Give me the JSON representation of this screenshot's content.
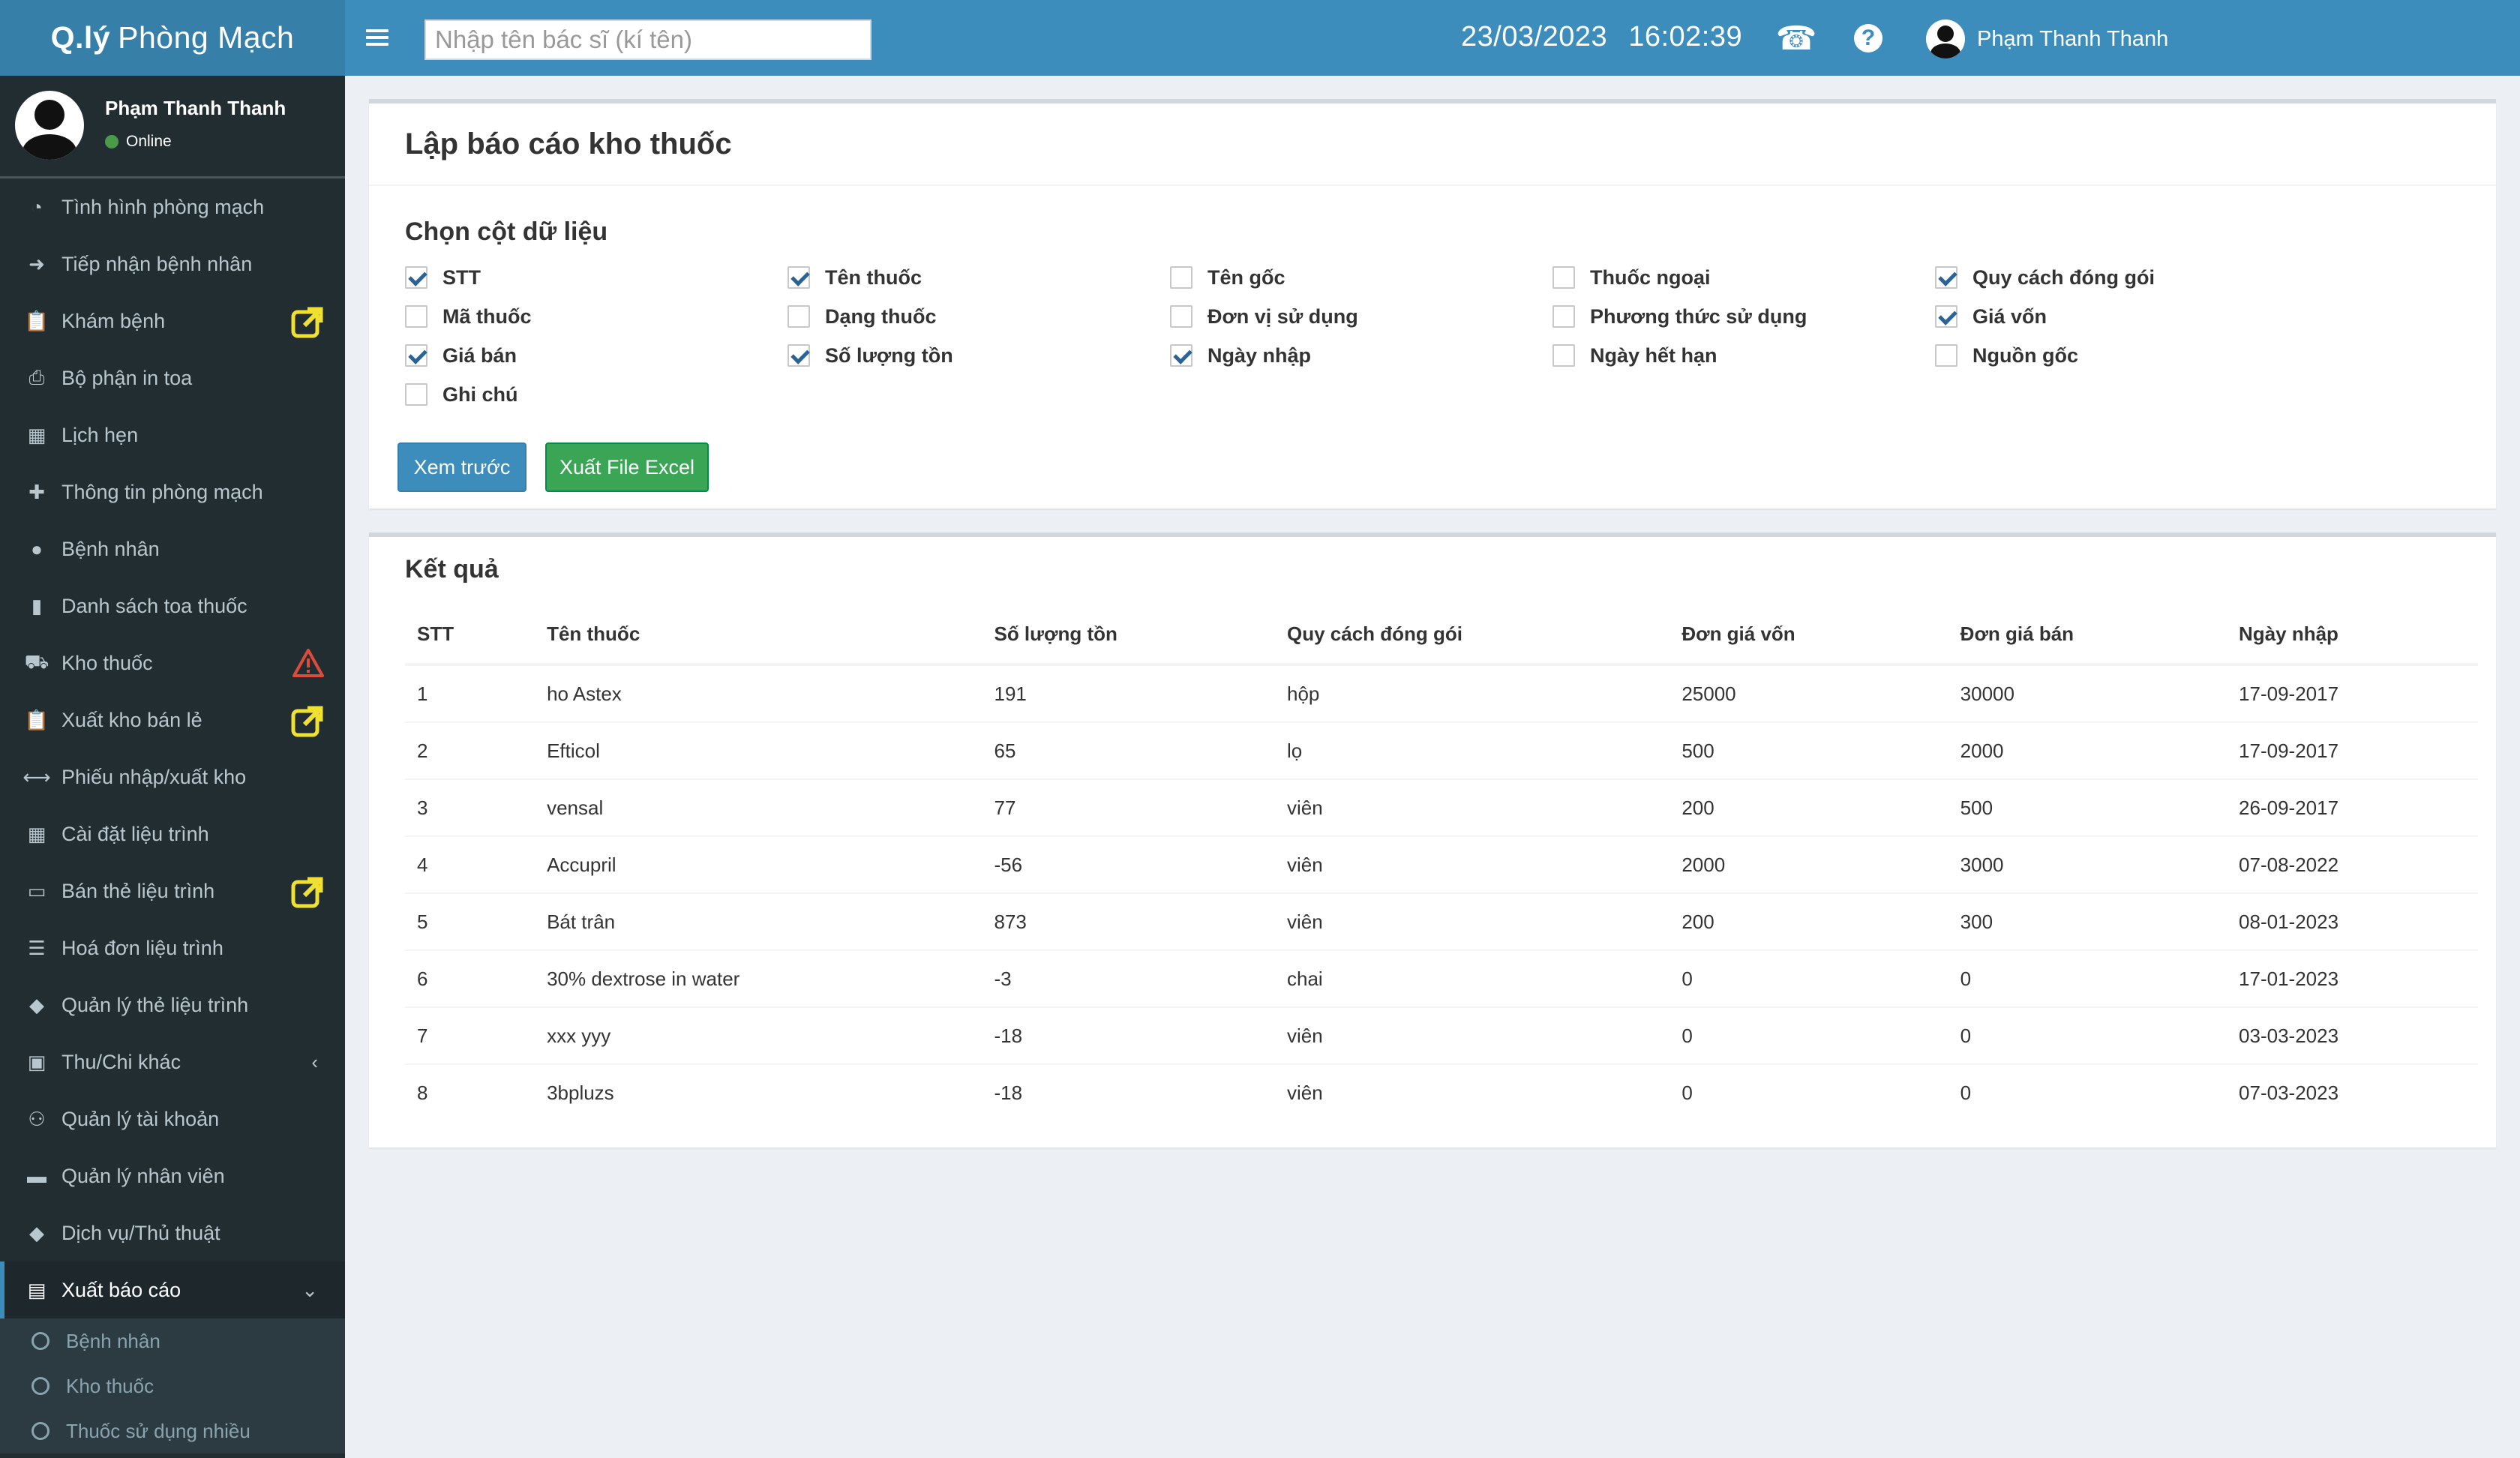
{
  "logo": {
    "bold": "Q.lý",
    "light": "Phòng Mạch"
  },
  "header": {
    "search_placeholder": "Nhập tên bác sĩ (kí tên)",
    "date": "23/03/2023",
    "time": "16:02:39",
    "user_name": "Phạm Thanh Thanh"
  },
  "user_panel": {
    "name": "Phạm Thanh Thanh",
    "status": "Online"
  },
  "sidebar": {
    "items": [
      {
        "label": "Tình hình phòng mạch",
        "icon": "pie-chart-icon"
      },
      {
        "label": "Tiếp nhận bệnh nhân",
        "icon": "sign-in-icon"
      },
      {
        "label": "Khám bệnh",
        "icon": "clipboard-icon",
        "badge": "external-link-icon"
      },
      {
        "label": "Bộ phận in toa",
        "icon": "print-icon"
      },
      {
        "label": "Lịch hẹn",
        "icon": "calendar-icon"
      },
      {
        "label": "Thông tin phòng mạch",
        "icon": "plus-icon"
      },
      {
        "label": "Bệnh nhân",
        "icon": "user-icon"
      },
      {
        "label": "Danh sách toa thuốc",
        "icon": "file-icon"
      },
      {
        "label": "Kho thuốc",
        "icon": "truck-icon",
        "badge": "warning-icon"
      },
      {
        "label": "Xuất kho bán lẻ",
        "icon": "clipboard-icon",
        "badge": "external-link-icon"
      },
      {
        "label": "Phiếu nhập/xuất kho",
        "icon": "arrows-h-icon"
      },
      {
        "label": "Cài đặt liệu trình",
        "icon": "table-icon"
      },
      {
        "label": "Bán thẻ liệu trình",
        "icon": "credit-card-icon",
        "badge": "external-link-icon"
      },
      {
        "label": "Hoá đơn liệu trình",
        "icon": "list-icon"
      },
      {
        "label": "Quản lý thẻ liệu trình",
        "icon": "tags-icon"
      },
      {
        "label": "Thu/Chi khác",
        "icon": "money-icon",
        "chevron": "‹"
      },
      {
        "label": "Quản lý tài khoản",
        "icon": "users-icon"
      },
      {
        "label": "Quản lý nhân viên",
        "icon": "briefcase-icon"
      },
      {
        "label": "Dịch vụ/Thủ thuật",
        "icon": "tags-icon"
      },
      {
        "label": "Xuất báo cáo",
        "icon": "excel-file-icon",
        "chevron": "⌄",
        "active": true
      }
    ],
    "submenu": [
      "Bệnh nhân",
      "Kho thuốc",
      "Thuốc sử dụng nhiều"
    ]
  },
  "report": {
    "title": "Lập báo cáo kho thuốc",
    "section_title": "Chọn cột dữ liệu",
    "columns": [
      {
        "label": "STT",
        "checked": true
      },
      {
        "label": "Tên thuốc",
        "checked": true
      },
      {
        "label": "Tên gốc",
        "checked": false
      },
      {
        "label": "Thuốc ngoại",
        "checked": false
      },
      {
        "label": "Quy cách đóng gói",
        "checked": true
      },
      {
        "label": "Mã thuốc",
        "checked": false
      },
      {
        "label": "Dạng thuốc",
        "checked": false
      },
      {
        "label": "Đơn vị sử dụng",
        "checked": false
      },
      {
        "label": "Phương thức sử dụng",
        "checked": false
      },
      {
        "label": "Giá vốn",
        "checked": true
      },
      {
        "label": "Giá bán",
        "checked": true
      },
      {
        "label": "Số lượng tồn",
        "checked": true
      },
      {
        "label": "Ngày nhập",
        "checked": true
      },
      {
        "label": "Ngày hết hạn",
        "checked": false
      },
      {
        "label": "Nguồn gốc",
        "checked": false
      },
      {
        "label": "Ghi chú",
        "checked": false
      }
    ],
    "preview_button": "Xem trước",
    "excel_button": "Xuất File Excel"
  },
  "results": {
    "title": "Kết quả",
    "headers": [
      "STT",
      "Tên thuốc",
      "Số lượng tồn",
      "Quy cách đóng gói",
      "Đơn giá vốn",
      "Đơn giá bán",
      "Ngày nhập"
    ],
    "rows": [
      [
        "1",
        "ho Astex",
        "191",
        "hộp",
        "25000",
        "30000",
        "17-09-2017"
      ],
      [
        "2",
        "Efticol",
        "65",
        "lọ",
        "500",
        "2000",
        "17-09-2017"
      ],
      [
        "3",
        "vensal",
        "77",
        "viên",
        "200",
        "500",
        "26-09-2017"
      ],
      [
        "4",
        "Accupril",
        "-56",
        "viên",
        "2000",
        "3000",
        "07-08-2022"
      ],
      [
        "5",
        "Bát trân",
        "873",
        "viên",
        "200",
        "300",
        "08-01-2023"
      ],
      [
        "6",
        "30% dextrose in water",
        "-3",
        "chai",
        "0",
        "0",
        "17-01-2023"
      ],
      [
        "7",
        "xxx yyy",
        "-18",
        "viên",
        "0",
        "0",
        "03-03-2023"
      ],
      [
        "8",
        "3bpluzs",
        "-18",
        "viên",
        "0",
        "0",
        "07-03-2023"
      ]
    ]
  },
  "colors": {
    "brand": "#3c8dbc",
    "sidebar": "#222d32",
    "success": "#00a65a",
    "badge_yellow": "#f0e030",
    "warning_red": "#dd4b39"
  }
}
